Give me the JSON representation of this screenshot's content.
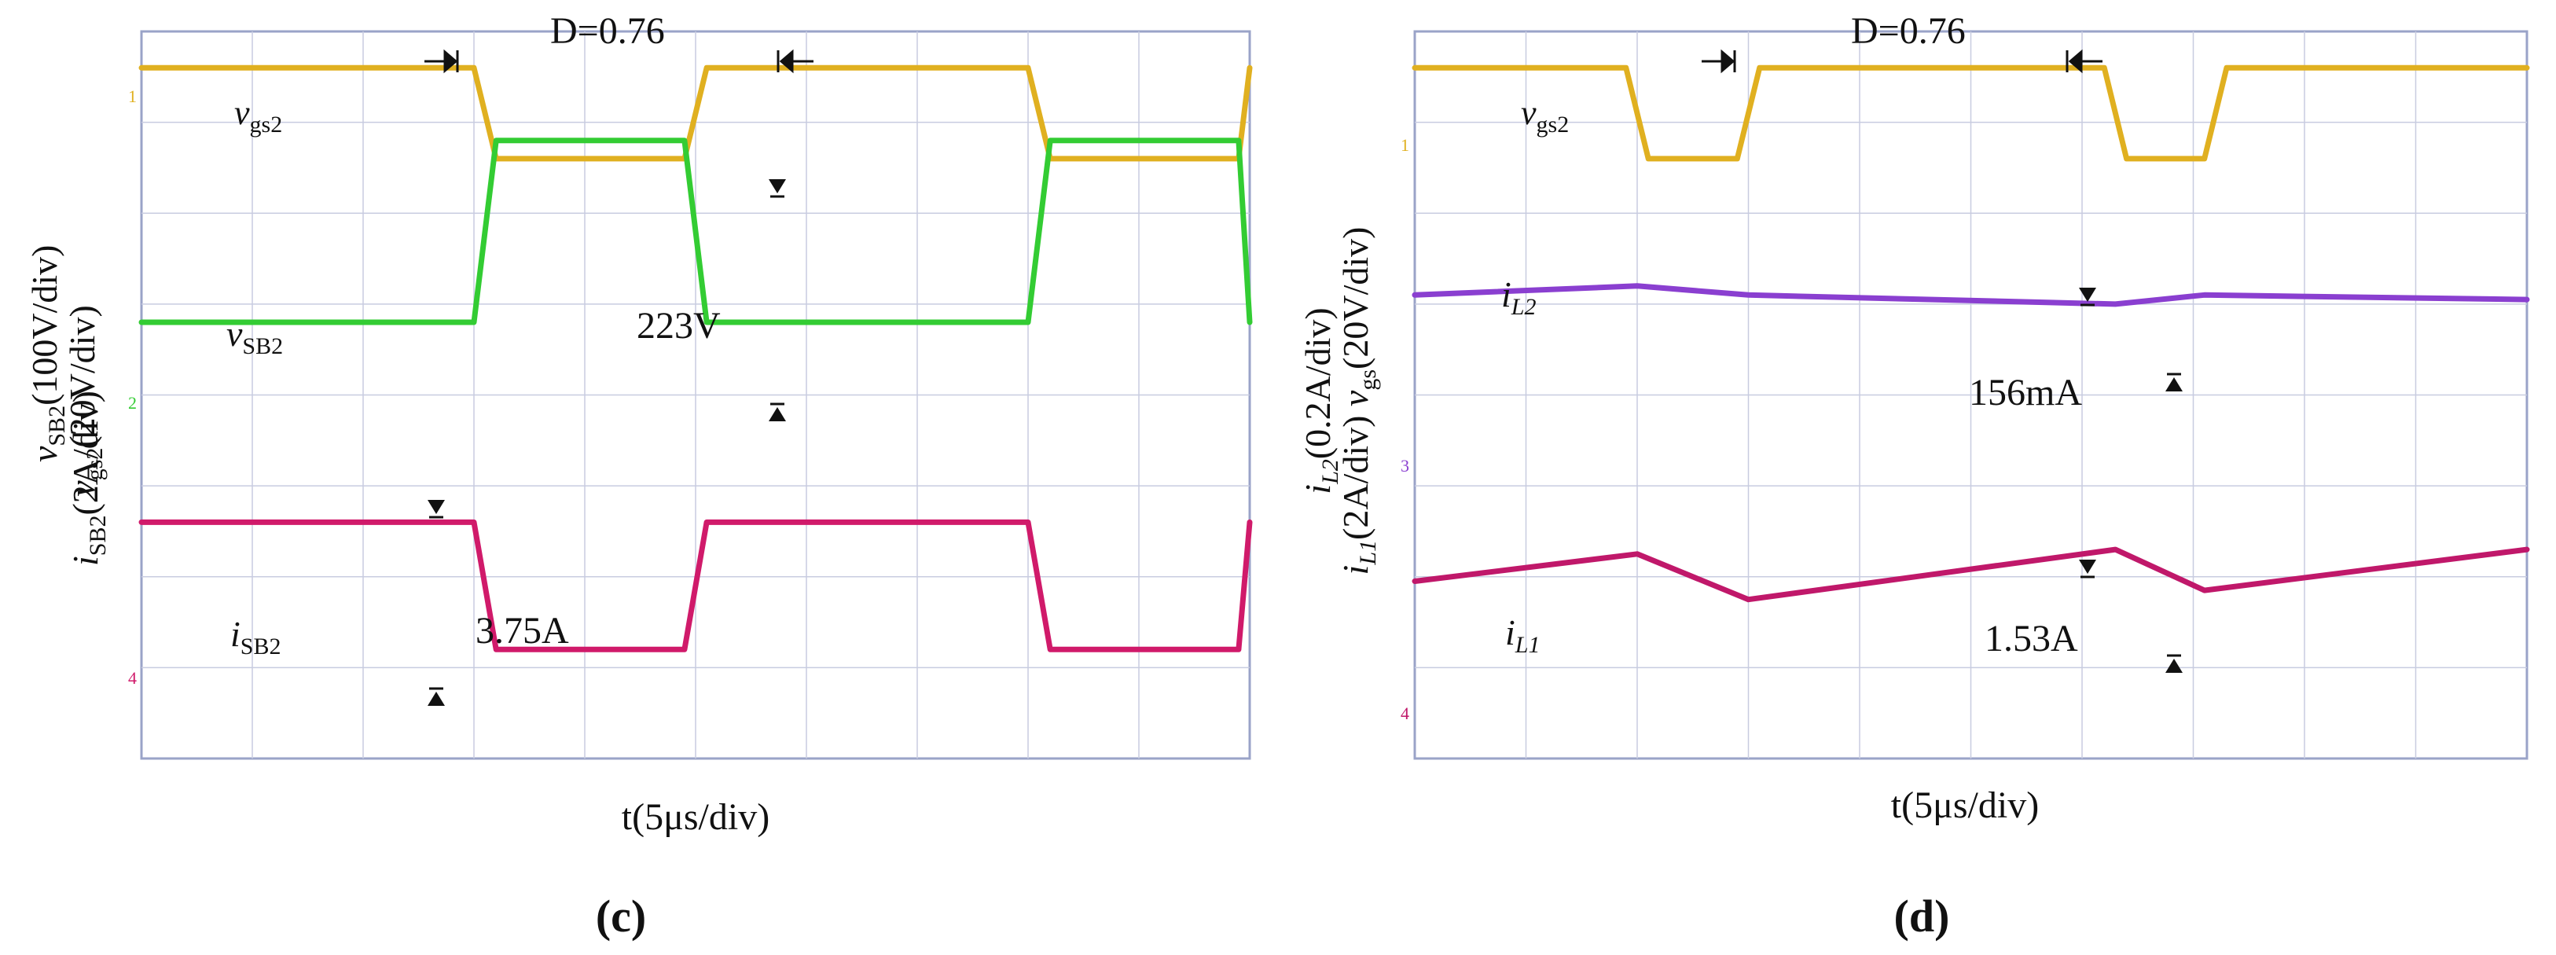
{
  "chart_data": [
    {
      "type": "line",
      "panel_label": "(c)",
      "xlabel": "t(5μs/div)",
      "ylabel_lines": [
        {
          "sym": "v",
          "sub": "SB2",
          "rest": "(100V/div)"
        },
        {
          "sym": "i",
          "sub": "SB2",
          "rest": "(2A/div)"
        },
        {
          "sym": "v",
          "sub": "gs2",
          "rest": "(20V/div)"
        }
      ],
      "grid": true,
      "x_divisions": 10,
      "y_divisions": 8,
      "annotations": {
        "duty": "D=0.76",
        "voltage": "223V",
        "current": "3.75A"
      },
      "series": [
        {
          "name": "v_gs2",
          "color": "#e0b020",
          "label_sym": "v",
          "label_sub": "gs2",
          "level_high_div": 7.6,
          "level_low_div": 6.6,
          "x_div": [
            0,
            3.0,
            3.2,
            4.9,
            5.1,
            8.0,
            8.2,
            9.9,
            10.1,
            12
          ],
          "y_state": [
            1,
            1,
            0,
            0,
            1,
            1,
            0,
            0,
            1,
            1
          ]
        },
        {
          "name": "v_SB2",
          "color": "#33cc33",
          "label_sym": "v",
          "label_sub": "SB2",
          "level_high_div": 6.8,
          "level_low_div": 4.8,
          "x_div": [
            0,
            3.0,
            3.2,
            4.9,
            5.1,
            8.0,
            8.2,
            9.9,
            10.1,
            12
          ],
          "y_state": [
            0,
            0,
            1,
            1,
            0,
            0,
            1,
            1,
            0,
            0
          ]
        },
        {
          "name": "i_SB2",
          "color": "#d01a6a",
          "label_sym": "i",
          "label_sub": "SB2",
          "level_high_div": 2.6,
          "level_low_div": 1.2,
          "x_div": [
            0,
            3.0,
            3.2,
            4.9,
            5.1,
            8.0,
            8.2,
            9.9,
            10.1,
            12
          ],
          "y_state": [
            1,
            1,
            0,
            0,
            1,
            1,
            0,
            0,
            1,
            1
          ]
        }
      ]
    },
    {
      "type": "line",
      "panel_label": "(d)",
      "xlabel": "t(5μs/div)",
      "ylabel_lines": [
        {
          "sym": "i",
          "sub": "L2",
          "rest": "(0.2A/div)"
        },
        {
          "sym": "i",
          "sub": "L1",
          "rest": "(2A/div)"
        },
        {
          "sym": "v",
          "sub": "gs",
          "rest": "(20V/div)"
        }
      ],
      "grid": true,
      "x_divisions": 10,
      "y_divisions": 8,
      "annotations": {
        "duty": "D=0.76",
        "current_l2": "156mA",
        "current_l1": "1.53A"
      },
      "series": [
        {
          "name": "v_gs2",
          "color": "#e0b020",
          "label_sym": "v",
          "label_sub": "gs2",
          "level_high_div": 7.6,
          "level_low_div": 6.6,
          "x_div": [
            0,
            1.9,
            2.1,
            2.9,
            3.1,
            6.2,
            6.4,
            7.1,
            7.3,
            10
          ],
          "y_state": [
            1,
            1,
            0,
            0,
            1,
            1,
            0,
            0,
            1,
            1
          ]
        },
        {
          "name": "i_L2",
          "color": "#8a3fd0",
          "label_sym": "i",
          "label_sub": "L2",
          "x_div": [
            0,
            2.0,
            3.0,
            6.3,
            7.1,
            10
          ],
          "y_div": [
            5.1,
            5.2,
            5.1,
            5.0,
            5.1,
            5.05
          ]
        },
        {
          "name": "i_L1",
          "color": "#c0186a",
          "label_sym": "i",
          "label_sub": "L1",
          "x_div": [
            0,
            2.0,
            3.0,
            6.3,
            7.1,
            10
          ],
          "y_div": [
            1.95,
            2.25,
            1.75,
            2.3,
            1.85,
            2.3
          ]
        }
      ]
    }
  ]
}
